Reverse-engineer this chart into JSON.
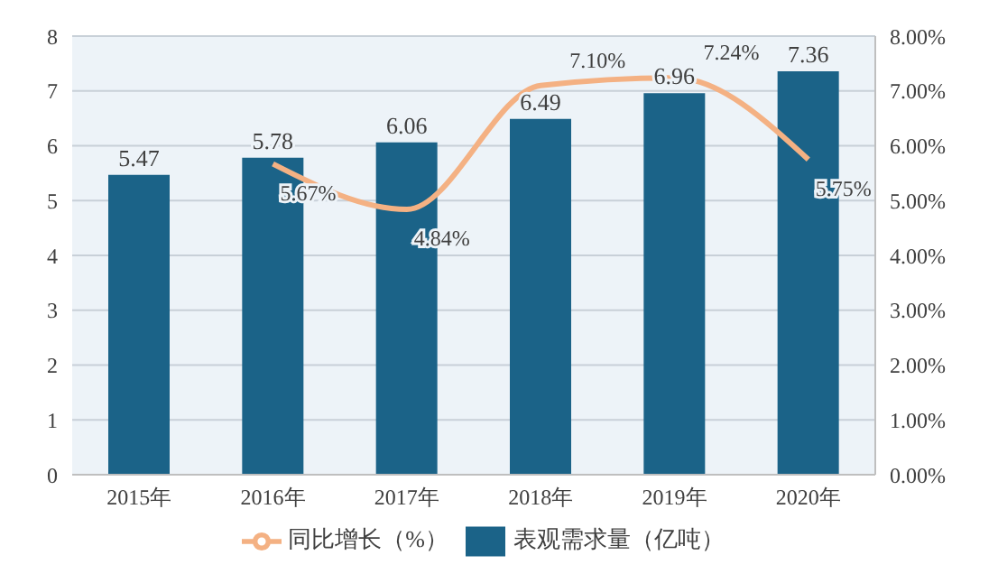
{
  "chart_data": {
    "type": "bar",
    "categories": [
      "2015年",
      "2016年",
      "2017年",
      "2018年",
      "2019年",
      "2020年"
    ],
    "series": [
      {
        "name": "表观需求量（亿吨）",
        "color": "#1b6388",
        "values": [
          5.47,
          5.78,
          6.06,
          6.49,
          6.96,
          7.36
        ],
        "data_labels": true
      },
      {
        "name": "同比增长（%）",
        "type": "line",
        "axis": "y2",
        "color": "#f4b183",
        "values": [
          null,
          5.67,
          4.84,
          7.1,
          7.24,
          5.75
        ],
        "value_labels": [
          null,
          "5.67%",
          "4.84%",
          "7.10%",
          "7.24%",
          "5.75%"
        ]
      }
    ],
    "ylim": [
      0,
      8
    ],
    "yticks": [
      0,
      1,
      2,
      3,
      4,
      5,
      6,
      7,
      8
    ],
    "y2lim": [
      0,
      8
    ],
    "y2ticks": [
      {
        "value": 0,
        "label": "0.00%"
      },
      {
        "value": 1,
        "label": "1.00%"
      },
      {
        "value": 2,
        "label": "2.00%"
      },
      {
        "value": 3,
        "label": "3.00%"
      },
      {
        "value": 4,
        "label": "4.00%"
      },
      {
        "value": 5,
        "label": "5.00%"
      },
      {
        "value": 6,
        "label": "6.00%"
      },
      {
        "value": 7,
        "label": "7.00%"
      },
      {
        "value": 8,
        "label": "8.00%"
      }
    ],
    "grid": "y",
    "legend": "bottom",
    "marker": "none"
  }
}
